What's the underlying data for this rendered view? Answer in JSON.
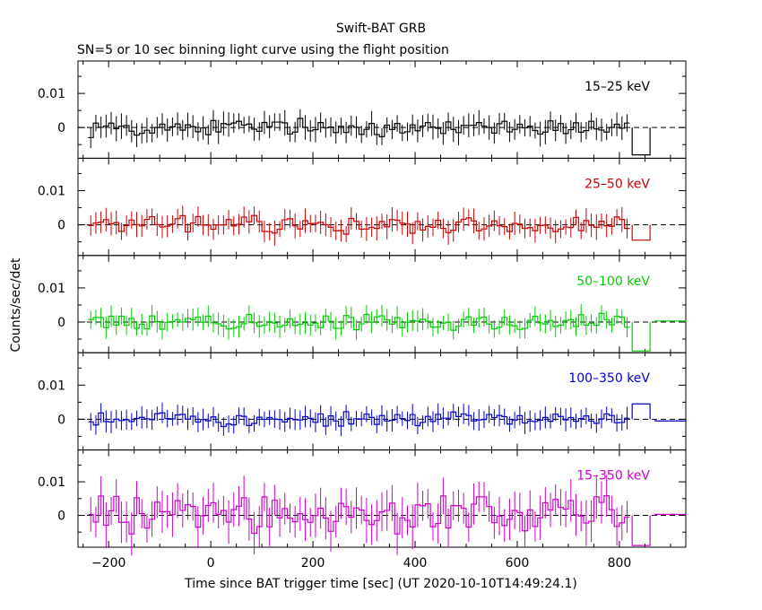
{
  "chart_data": {
    "type": "line",
    "title": "Swift-BAT GRB",
    "subtitle": "SN=5 or 10 sec binning light curve using the flight position",
    "xlabel": "Time since BAT trigger time [sec] (UT 2020-10-10T14:49:24.1)",
    "ylabel": "Counts/sec/det",
    "xlim": [
      -260,
      930
    ],
    "xticks": [
      -200,
      0,
      200,
      400,
      600,
      800
    ],
    "xtick_labels": [
      "−200",
      "0",
      "200",
      "400",
      "600",
      "800"
    ],
    "ytick_labels": [
      "0.01",
      "0"
    ],
    "panels": [
      {
        "name": "15-25 keV",
        "label": "15–25 keV",
        "color": "#000000",
        "ylim": [
          -0.009,
          0.0195
        ],
        "yticks": [
          0,
          0.01
        ],
        "amp": 0.0022,
        "err": 0.003,
        "last": [
          {
            "x0": 825,
            "x1": 860,
            "y": -0.008
          }
        ]
      },
      {
        "name": "25-50 keV",
        "label": "25–50 keV",
        "color": "#cc0000",
        "ylim": [
          -0.009,
          0.0195
        ],
        "yticks": [
          0,
          0.01
        ],
        "amp": 0.0022,
        "err": 0.003,
        "last": [
          {
            "x0": 825,
            "x1": 860,
            "y": -0.0045
          }
        ]
      },
      {
        "name": "50-100 keV",
        "label": "50–100 keV",
        "color": "#00cc00",
        "ylim": [
          -0.009,
          0.0195
        ],
        "yticks": [
          0,
          0.01
        ],
        "amp": 0.002,
        "err": 0.0027,
        "last": [
          {
            "x0": 825,
            "x1": 860,
            "y": -0.0085
          },
          {
            "x0": 870,
            "x1": 930,
            "y": 0.0003
          }
        ]
      },
      {
        "name": "100-350 keV",
        "label": "100–350 keV",
        "color": "#0000cc",
        "ylim": [
          -0.009,
          0.0195
        ],
        "yticks": [
          0,
          0.01
        ],
        "amp": 0.0019,
        "err": 0.0027,
        "last": [
          {
            "x0": 825,
            "x1": 860,
            "y": 0.0045
          },
          {
            "x0": 870,
            "x1": 930,
            "y": -0.0005
          }
        ]
      },
      {
        "name": "15-350 keV",
        "label": "15–350 keV",
        "color": "#cc00cc",
        "ylim": [
          -0.0095,
          0.0195
        ],
        "yticks": [
          0,
          0.01
        ],
        "amp": 0.0045,
        "err": 0.0055,
        "last": [
          {
            "x0": 825,
            "x1": 860,
            "y": -0.009
          },
          {
            "x0": 870,
            "x1": 930,
            "y": 0.0003
          }
        ]
      }
    ],
    "binning": {
      "start": -240,
      "end": 820,
      "width": 10
    },
    "note": "binned values are approximate (noise-like light curves)"
  }
}
